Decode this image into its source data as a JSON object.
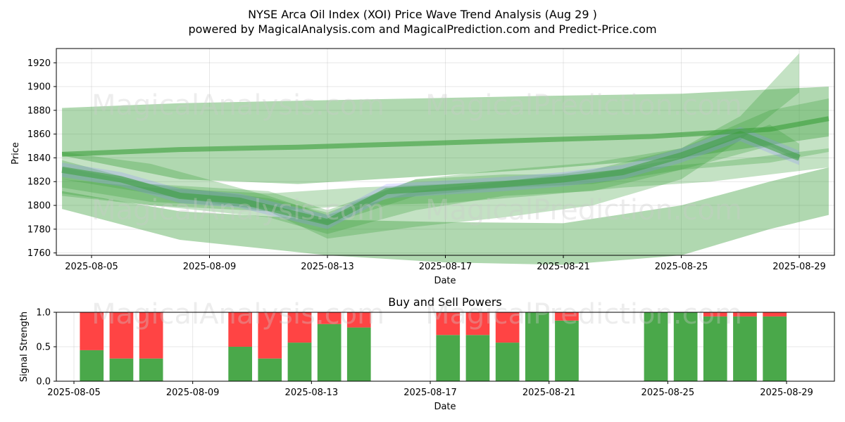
{
  "title": "NYSE Arca Oil Index (XOI) Price Wave Trend Analysis (Aug 29 )",
  "subtitle": "powered by MagicalAnalysis.com and MagicalPrediction.com and Predict-Price.com",
  "watermarks": [
    "MagicalAnalysis.com",
    "MagicalPrediction.com"
  ],
  "colors": {
    "buy": "#4aa84a",
    "sell": "#ff4444",
    "band": "#3a9e3a",
    "blue_band": "#8a8aff"
  },
  "chart_data": [
    {
      "type": "area",
      "title": "",
      "xlabel": "Date",
      "ylabel": "Price",
      "ylim": [
        1758,
        1932
      ],
      "xlim": [
        "2025-08-04",
        "2025-08-30"
      ],
      "x_ticks": [
        "2025-08-05",
        "2025-08-09",
        "2025-08-13",
        "2025-08-17",
        "2025-08-21",
        "2025-08-25",
        "2025-08-29"
      ],
      "y_ticks": [
        1760,
        1780,
        1800,
        1820,
        1840,
        1860,
        1880,
        1900,
        1920
      ],
      "grid": true,
      "bands": [
        {
          "x": [
            "2025-08-04",
            "2025-08-08",
            "2025-08-12",
            "2025-08-16",
            "2025-08-20",
            "2025-08-25",
            "2025-08-30"
          ],
          "lower": [
            1842,
            1822,
            1818,
            1824,
            1830,
            1840,
            1858
          ],
          "upper": [
            1882,
            1886,
            1888,
            1890,
            1892,
            1894,
            1900
          ]
        },
        {
          "x": [
            "2025-08-04",
            "2025-08-08",
            "2025-08-13",
            "2025-08-17",
            "2025-08-21",
            "2025-08-25",
            "2025-08-28",
            "2025-08-30"
          ],
          "lower": [
            1797,
            1771,
            1758,
            1752,
            1750,
            1758,
            1780,
            1792
          ],
          "upper": [
            1812,
            1795,
            1788,
            1786,
            1785,
            1800,
            1820,
            1832
          ]
        },
        {
          "x": [
            "2025-08-04",
            "2025-08-07",
            "2025-08-11",
            "2025-08-13",
            "2025-08-16",
            "2025-08-19",
            "2025-08-22",
            "2025-08-25",
            "2025-08-27",
            "2025-08-29"
          ],
          "lower": [
            1822,
            1810,
            1795,
            1772,
            1782,
            1790,
            1800,
            1822,
            1855,
            1895
          ],
          "upper": [
            1845,
            1835,
            1808,
            1792,
            1812,
            1820,
            1830,
            1848,
            1875,
            1928
          ]
        },
        {
          "x": [
            "2025-08-04",
            "2025-08-07",
            "2025-08-11",
            "2025-08-13",
            "2025-08-16",
            "2025-08-19",
            "2025-08-22",
            "2025-08-25",
            "2025-08-28",
            "2025-08-30"
          ],
          "lower": [
            1808,
            1800,
            1790,
            1776,
            1796,
            1808,
            1812,
            1830,
            1836,
            1845
          ],
          "upper": [
            1838,
            1818,
            1812,
            1796,
            1822,
            1830,
            1836,
            1848,
            1880,
            1890
          ]
        },
        {
          "x": [
            "2025-08-04",
            "2025-08-07",
            "2025-08-11",
            "2025-08-13",
            "2025-08-16",
            "2025-08-19",
            "2025-08-22",
            "2025-08-25",
            "2025-08-28",
            "2025-08-29"
          ],
          "lower": [
            1815,
            1803,
            1798,
            1784,
            1808,
            1815,
            1818,
            1830,
            1850,
            1838
          ],
          "upper": [
            1832,
            1818,
            1806,
            1794,
            1822,
            1826,
            1826,
            1840,
            1868,
            1852
          ]
        },
        {
          "x": [
            "2025-08-04",
            "2025-08-07",
            "2025-08-11",
            "2025-08-14",
            "2025-08-17",
            "2025-08-20",
            "2025-08-23",
            "2025-08-26",
            "2025-08-30"
          ],
          "lower": [
            1810,
            1800,
            1795,
            1800,
            1802,
            1808,
            1815,
            1820,
            1832
          ],
          "upper": [
            1822,
            1815,
            1810,
            1815,
            1818,
            1822,
            1830,
            1836,
            1848
          ]
        }
      ],
      "trend_line": {
        "x": [
          "2025-08-04",
          "2025-08-08",
          "2025-08-12",
          "2025-08-16",
          "2025-08-20",
          "2025-08-24",
          "2025-08-28",
          "2025-08-30"
        ],
        "y": [
          1843,
          1847,
          1849,
          1852,
          1855,
          1858,
          1864,
          1873
        ]
      },
      "wave_line": {
        "x": [
          "2025-08-04",
          "2025-08-06",
          "2025-08-08",
          "2025-08-10",
          "2025-08-12",
          "2025-08-13",
          "2025-08-15",
          "2025-08-17",
          "2025-08-19",
          "2025-08-21",
          "2025-08-23",
          "2025-08-25",
          "2025-08-27",
          "2025-08-29"
        ],
        "y": [
          1830,
          1822,
          1808,
          1804,
          1792,
          1786,
          1812,
          1815,
          1818,
          1822,
          1828,
          1842,
          1860,
          1840
        ]
      }
    },
    {
      "type": "bar",
      "title": "Buy and Sell Powers",
      "xlabel": "Date",
      "ylabel": "Signal Strength",
      "ylim": [
        0,
        1
      ],
      "xlim": [
        "2025-08-04",
        "2025-08-30"
      ],
      "x_ticks": [
        "2025-08-05",
        "2025-08-09",
        "2025-08-13",
        "2025-08-17",
        "2025-08-21",
        "2025-08-25",
        "2025-08-29"
      ],
      "y_ticks": [
        "0.0",
        "0.5",
        "1.0"
      ],
      "grid": true,
      "categories": [
        "2025-08-05",
        "2025-08-06",
        "2025-08-07",
        "2025-08-10",
        "2025-08-11",
        "2025-08-12",
        "2025-08-13",
        "2025-08-14",
        "2025-08-17",
        "2025-08-18",
        "2025-08-19",
        "2025-08-20",
        "2025-08-21",
        "2025-08-24",
        "2025-08-25",
        "2025-08-26",
        "2025-08-27",
        "2025-08-28"
      ],
      "series": [
        {
          "values": [
            0.45,
            0.33,
            0.33,
            0.5,
            0.33,
            0.56,
            0.83,
            0.78,
            0.67,
            0.67,
            0.56,
            1.0,
            0.88,
            1.0,
            1.0,
            0.94,
            0.94,
            0.94
          ]
        },
        {
          "values": [
            0.55,
            0.67,
            0.67,
            0.5,
            0.67,
            0.44,
            0.17,
            0.22,
            0.33,
            0.33,
            0.44,
            0.0,
            0.12,
            0.0,
            0.0,
            0.06,
            0.06,
            0.06
          ]
        }
      ]
    }
  ]
}
